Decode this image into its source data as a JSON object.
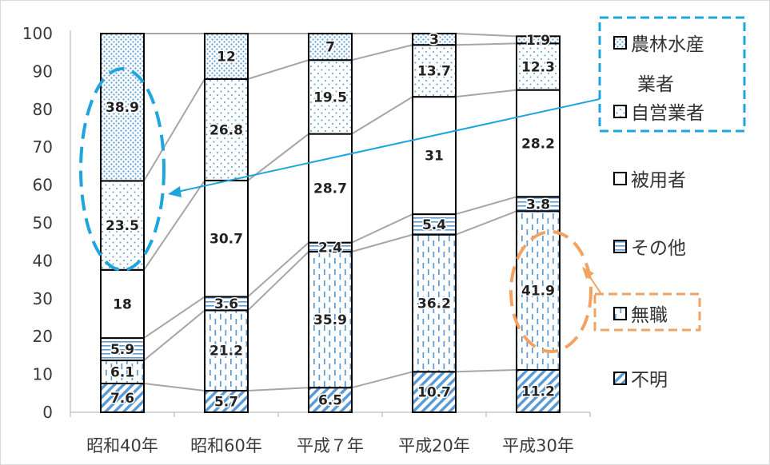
{
  "chart_data": {
    "type": "bar",
    "stacked": true,
    "title": "",
    "xlabel": "",
    "ylabel": "",
    "ylim": [
      0,
      100
    ],
    "yticks": [
      0,
      10,
      20,
      30,
      40,
      50,
      60,
      70,
      80,
      90,
      100
    ],
    "grid": false,
    "legend_position": "right",
    "categories": [
      "昭和40年",
      "昭和60年",
      "平成７年",
      "平成20年",
      "平成30年"
    ],
    "series": [
      {
        "name": "不明",
        "values": [
          7.6,
          5.7,
          6.5,
          10.7,
          11.2
        ],
        "labels": [
          "7.6",
          "5.7",
          "6.5",
          "10.7",
          "11.2"
        ],
        "pattern": "diagonal"
      },
      {
        "name": "無職",
        "values": [
          6.1,
          21.2,
          35.9,
          36.2,
          41.9
        ],
        "labels": [
          "6.1",
          "21.2",
          "35.9",
          "36.2",
          "41.9"
        ],
        "pattern": "dashed-vertical"
      },
      {
        "name": "その他",
        "values": [
          5.9,
          3.6,
          2.4,
          5.4,
          3.8
        ],
        "labels": [
          "5.9",
          "3.6",
          "2.4",
          "5.4",
          "3.8"
        ],
        "pattern": "horizontal"
      },
      {
        "name": "被用者",
        "values": [
          18,
          30.7,
          28.7,
          31,
          28.2
        ],
        "labels": [
          "18",
          "30.7",
          "28.7",
          "31",
          "28.2"
        ],
        "pattern": "solid-white"
      },
      {
        "name": "自営業者",
        "values": [
          23.5,
          26.8,
          19.5,
          13.7,
          12.3
        ],
        "labels": [
          "23.5",
          "26.8",
          "19.5",
          "13.7",
          "12.3"
        ],
        "pattern": "sparse-dots"
      },
      {
        "name": "農林水産業者",
        "values": [
          38.9,
          12,
          7,
          3,
          1.9
        ],
        "labels": [
          "38.9",
          "12",
          "7",
          "3",
          "1.9"
        ],
        "pattern": "dense-dots"
      }
    ],
    "legend_order": [
      "農林水産業者",
      "自営業者",
      "被用者",
      "その他",
      "無職",
      "不明"
    ],
    "legend_lines": {
      "農林水産業者": [
        "農林水産",
        "業者"
      ]
    },
    "colors": {
      "pattern": "#5b9bd5",
      "connector": "#a6a6a6",
      "axis": "#bfbfbf",
      "highlight_blue": "#1fa5de",
      "highlight_orange": "#f4a261"
    },
    "annotations": [
      {
        "type": "dashed-ellipse",
        "color": "#1fa5de",
        "category": "昭和40年",
        "series": [
          "自営業者",
          "農林水産業者"
        ],
        "points_to_legend": [
          "農林水産業者",
          "自営業者"
        ]
      },
      {
        "type": "dashed-ellipse",
        "color": "#f4a261",
        "category": "平成30年",
        "series": [
          "無職"
        ],
        "points_to_legend": [
          "無職"
        ]
      }
    ]
  }
}
